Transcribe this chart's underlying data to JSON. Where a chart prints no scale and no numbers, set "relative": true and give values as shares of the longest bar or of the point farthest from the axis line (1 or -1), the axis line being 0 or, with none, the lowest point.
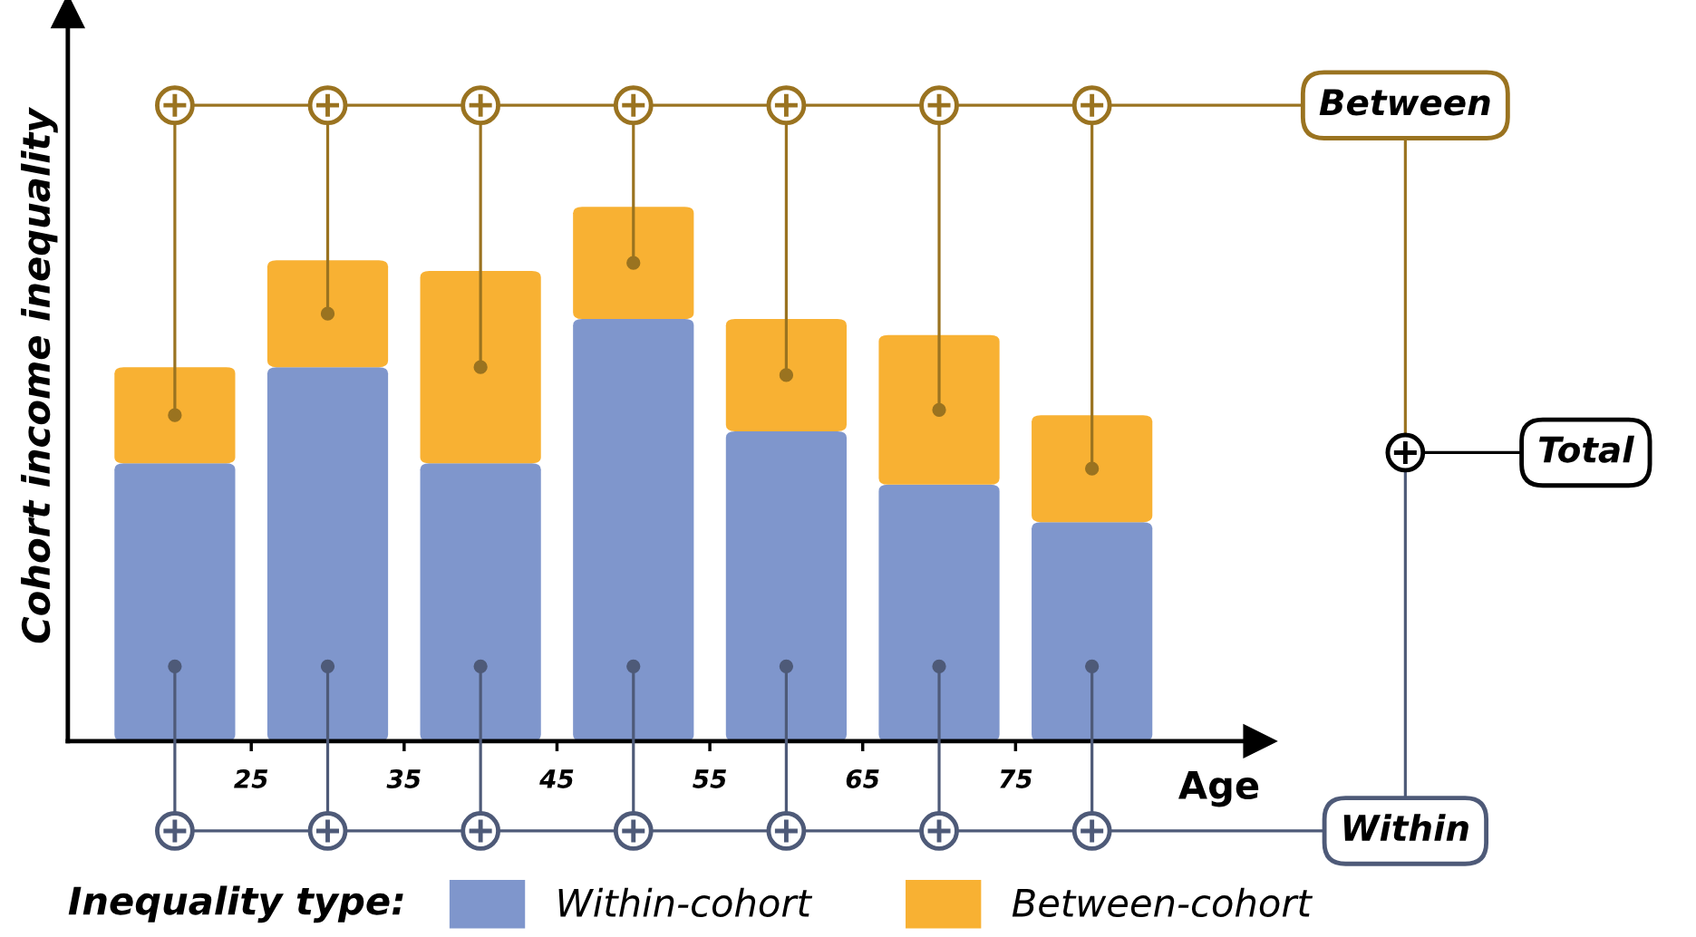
{
  "chart_data": {
    "type": "bar",
    "stacked": true,
    "relative": true,
    "xlabel": "Age",
    "ylabel": "Cohort income inequality",
    "legend_title": "Inequality type:",
    "x": [
      20,
      30,
      40,
      50,
      60,
      70,
      80
    ],
    "xlim": [
      13,
      91
    ],
    "xticks": [
      25,
      35,
      45,
      55,
      65,
      75
    ],
    "series": [
      {
        "name": "Within-cohort",
        "color": "#7f96cc",
        "values": [
          0.52,
          0.7,
          0.52,
          0.79,
          0.58,
          0.48,
          0.41
        ]
      },
      {
        "name": "Between-cohort",
        "color": "#f8b133",
        "values": [
          0.18,
          0.2,
          0.36,
          0.21,
          0.21,
          0.28,
          0.2
        ]
      }
    ],
    "annotations": [
      "Between",
      "Total",
      "Within"
    ],
    "legend": "bottom",
    "grid": false
  }
}
